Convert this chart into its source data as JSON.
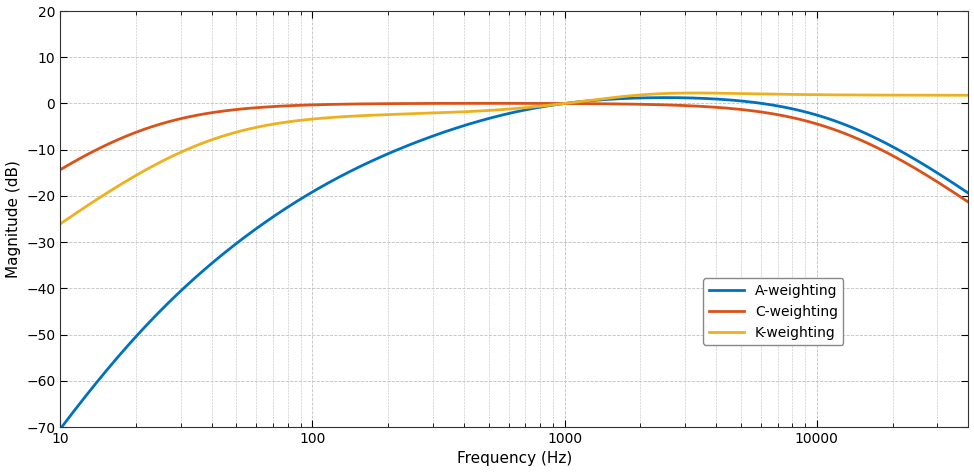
{
  "title": "",
  "xlabel": "Frequency (Hz)",
  "ylabel": "Magnitude (dB)",
  "xlim": [
    10,
    40000
  ],
  "ylim": [
    -70,
    20
  ],
  "yticks": [
    -70,
    -60,
    -50,
    -40,
    -30,
    -20,
    -10,
    0,
    10,
    20
  ],
  "legend": [
    "A-weighting",
    "C-weighting",
    "K-weighting"
  ],
  "colors": {
    "A": "#0072BD",
    "C": "#D95319",
    "K": "#EDB120"
  },
  "linewidth": 2.0,
  "background_color": "#FFFFFF",
  "grid_color": "#C0C0C0",
  "fig_width": 9.74,
  "fig_height": 4.72,
  "dpi": 100
}
